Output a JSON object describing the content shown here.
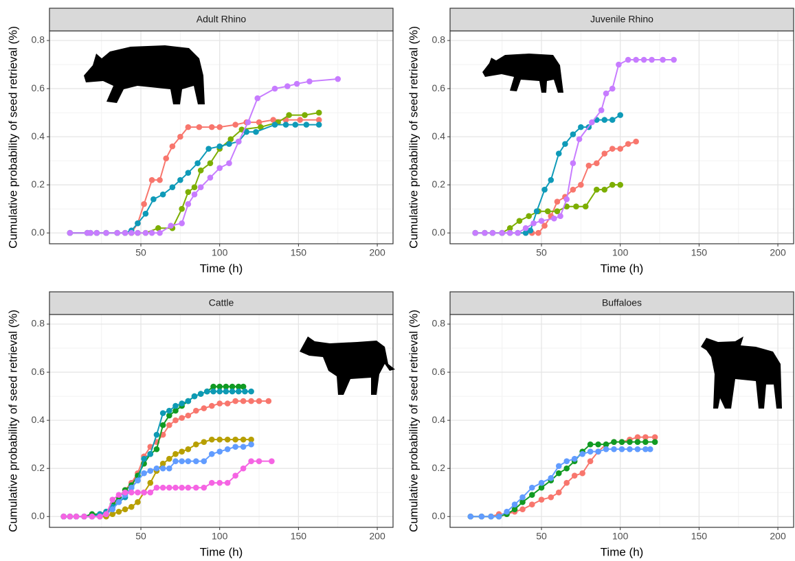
{
  "chart_data": [
    {
      "type": "line",
      "title": "Adult Rhino",
      "xlabel": "Time (h)",
      "ylabel": "Cumulative probability of seed retrieval (%)",
      "xlim": [
        -8,
        210
      ],
      "ylim": [
        -0.045,
        0.84
      ],
      "xticks": [
        50,
        100,
        150,
        200
      ],
      "yticks": [
        {
          "value": 0,
          "label": "0.0"
        },
        0.2,
        0.4,
        0.6,
        0.8
      ],
      "grid": true,
      "series": [
        {
          "color": "#F8766D",
          "x": [
            5,
            16,
            18,
            22,
            28,
            35,
            40,
            44,
            48,
            52,
            57,
            62,
            66,
            70,
            75,
            80,
            87,
            95,
            100,
            110,
            117,
            125,
            134,
            142,
            151,
            163
          ],
          "values": [
            0,
            0,
            0,
            0,
            0,
            0,
            0,
            0,
            0.04,
            0.12,
            0.22,
            0.22,
            0.31,
            0.36,
            0.4,
            0.44,
            0.44,
            0.44,
            0.44,
            0.45,
            0.46,
            0.46,
            0.47,
            0.47,
            0.47,
            0.47
          ]
        },
        {
          "color": "#7CAE00",
          "x": [
            5,
            16,
            18,
            22,
            28,
            35,
            40,
            44,
            48,
            53,
            61,
            70,
            76,
            80,
            84,
            88,
            94,
            100,
            107,
            114,
            126,
            137,
            144,
            154,
            163
          ],
          "values": [
            0,
            0,
            0,
            0,
            0,
            0,
            0,
            0,
            0,
            0,
            0.02,
            0.02,
            0.1,
            0.17,
            0.19,
            0.26,
            0.29,
            0.35,
            0.39,
            0.43,
            0.44,
            0.46,
            0.49,
            0.49,
            0.5
          ]
        },
        {
          "color": "#0E9AB8",
          "x": [
            5,
            16,
            18,
            22,
            28,
            35,
            40,
            44,
            48,
            53,
            58,
            64,
            70,
            75,
            80,
            86,
            93,
            100,
            106,
            112,
            117,
            123,
            135,
            142,
            148,
            155,
            163
          ],
          "values": [
            0,
            0,
            0,
            0,
            0,
            0,
            0,
            0.01,
            0.04,
            0.08,
            0.14,
            0.16,
            0.19,
            0.22,
            0.25,
            0.29,
            0.35,
            0.36,
            0.37,
            0.38,
            0.42,
            0.42,
            0.45,
            0.45,
            0.45,
            0.45,
            0.45
          ]
        },
        {
          "color": "#C77CFF",
          "x": [
            5,
            16,
            18,
            22,
            28,
            35,
            40,
            44,
            48,
            53,
            57,
            62,
            69,
            76,
            80,
            84,
            88,
            94,
            100,
            106,
            112,
            118,
            124,
            135,
            143,
            149,
            157,
            175
          ],
          "values": [
            0,
            0,
            0,
            0,
            0,
            0,
            0,
            0,
            0,
            0,
            0,
            0,
            0.03,
            0.04,
            0.12,
            0.16,
            0.19,
            0.23,
            0.27,
            0.29,
            0.38,
            0.46,
            0.56,
            0.6,
            0.61,
            0.62,
            0.63,
            0.64
          ]
        }
      ]
    },
    {
      "type": "line",
      "title": "Juvenile Rhino",
      "xlabel": "Time (h)",
      "ylabel": "Cumulative probability of seed retrieval (%)",
      "xlim": [
        -8,
        210
      ],
      "ylim": [
        -0.045,
        0.84
      ],
      "xticks": [
        50,
        100,
        150,
        200
      ],
      "yticks": [
        {
          "value": 0,
          "label": "0.0"
        },
        0.2,
        0.4,
        0.6,
        0.8
      ],
      "grid": true,
      "series": [
        {
          "color": "#F8766D",
          "x": [
            8,
            14,
            19,
            25,
            30,
            35,
            40,
            44,
            48,
            52,
            56,
            60,
            65,
            70,
            75,
            80,
            85,
            90,
            95,
            100,
            105,
            110
          ],
          "values": [
            0,
            0,
            0,
            0,
            0,
            0,
            0,
            0,
            0,
            0.03,
            0.07,
            0.13,
            0.15,
            0.18,
            0.2,
            0.28,
            0.29,
            0.33,
            0.35,
            0.35,
            0.37,
            0.38
          ]
        },
        {
          "color": "#7CAE00",
          "x": [
            8,
            14,
            19,
            25,
            30,
            36,
            42,
            48,
            54,
            60,
            66,
            72,
            78,
            85,
            90,
            95,
            100
          ],
          "values": [
            0,
            0,
            0,
            0,
            0.02,
            0.05,
            0.07,
            0.09,
            0.09,
            0.09,
            0.11,
            0.11,
            0.11,
            0.18,
            0.18,
            0.2,
            0.2
          ]
        },
        {
          "color": "#0E9AB8",
          "x": [
            8,
            14,
            19,
            25,
            30,
            35,
            40,
            43,
            47,
            52,
            56,
            61,
            65,
            70,
            75,
            80,
            85,
            90,
            95,
            100
          ],
          "values": [
            0,
            0,
            0,
            0,
            0,
            0,
            0,
            0.01,
            0.09,
            0.18,
            0.22,
            0.33,
            0.37,
            0.41,
            0.44,
            0.44,
            0.47,
            0.47,
            0.47,
            0.49
          ]
        },
        {
          "color": "#C77CFF",
          "x": [
            8,
            14,
            19,
            25,
            30,
            35,
            40,
            45,
            50,
            58,
            62,
            66,
            70,
            74,
            82,
            88,
            91,
            95,
            99,
            105,
            110,
            115,
            120,
            127,
            134
          ],
          "values": [
            0,
            0,
            0,
            0,
            0,
            0,
            0.02,
            0.04,
            0.05,
            0.06,
            0.07,
            0.14,
            0.29,
            0.39,
            0.46,
            0.51,
            0.58,
            0.6,
            0.7,
            0.72,
            0.72,
            0.72,
            0.72,
            0.72,
            0.72
          ]
        }
      ]
    },
    {
      "type": "line",
      "title": "Cattle",
      "xlabel": "Time (h)",
      "ylabel": "Cumulative probability of seed retrieval (%)",
      "xlim": [
        -8,
        210
      ],
      "ylim": [
        -0.045,
        0.84
      ],
      "xticks": [
        50,
        100,
        150,
        200
      ],
      "yticks": [
        {
          "value": 0,
          "label": "0.0"
        },
        0.2,
        0.4,
        0.6,
        0.8
      ],
      "grid": true,
      "series": [
        {
          "color": "#F8766D",
          "x": [
            1,
            5,
            9,
            14,
            19,
            24,
            28,
            32,
            36,
            40,
            44,
            48,
            52,
            56,
            60,
            64,
            68,
            72,
            76,
            80,
            85,
            90,
            95,
            100,
            105,
            110,
            115,
            120,
            125,
            131
          ],
          "values": [
            0,
            0,
            0,
            0,
            0,
            0,
            0.01,
            0.04,
            0.08,
            0.11,
            0.14,
            0.18,
            0.25,
            0.29,
            0.31,
            0.34,
            0.38,
            0.4,
            0.41,
            0.42,
            0.44,
            0.45,
            0.46,
            0.47,
            0.47,
            0.48,
            0.48,
            0.48,
            0.48,
            0.48
          ]
        },
        {
          "color": "#B79F00",
          "x": [
            1,
            5,
            9,
            14,
            19,
            24,
            28,
            32,
            36,
            40,
            44,
            48,
            52,
            56,
            60,
            64,
            68,
            72,
            76,
            80,
            85,
            90,
            95,
            100,
            105,
            110,
            115,
            120
          ],
          "values": [
            0,
            0,
            0,
            0,
            0,
            0,
            0,
            0.01,
            0.02,
            0.03,
            0.04,
            0.06,
            0.1,
            0.14,
            0.19,
            0.22,
            0.24,
            0.26,
            0.27,
            0.28,
            0.3,
            0.31,
            0.32,
            0.32,
            0.32,
            0.32,
            0.32,
            0.32
          ]
        },
        {
          "color": "#119A22",
          "x": [
            1,
            5,
            9,
            14,
            19,
            24,
            28,
            32,
            36,
            40,
            44,
            48,
            52,
            56,
            60,
            64,
            68,
            72,
            76,
            80,
            84,
            88,
            92,
            96,
            100,
            104,
            108,
            112,
            115
          ],
          "values": [
            0,
            0,
            0,
            0,
            0.01,
            0.01,
            0.02,
            0.05,
            0.08,
            0.11,
            0.13,
            0.17,
            0.22,
            0.26,
            0.28,
            0.38,
            0.42,
            0.44,
            0.46,
            0.48,
            0.5,
            0.51,
            0.52,
            0.54,
            0.54,
            0.54,
            0.54,
            0.54,
            0.54
          ]
        },
        {
          "color": "#0E9AB4",
          "x": [
            1,
            5,
            9,
            14,
            19,
            24,
            28,
            32,
            36,
            40,
            44,
            48,
            52,
            56,
            60,
            64,
            68,
            72,
            76,
            80,
            84,
            88,
            92,
            96,
            100,
            104,
            108,
            112,
            116,
            120
          ],
          "values": [
            0,
            0,
            0,
            0,
            0,
            0.01,
            0.02,
            0.04,
            0.06,
            0.08,
            0.12,
            0.15,
            0.24,
            0.26,
            0.34,
            0.43,
            0.44,
            0.46,
            0.47,
            0.48,
            0.5,
            0.51,
            0.52,
            0.52,
            0.52,
            0.52,
            0.52,
            0.52,
            0.52,
            0.52
          ]
        },
        {
          "color": "#619CFF",
          "x": [
            1,
            5,
            9,
            14,
            19,
            24,
            28,
            32,
            36,
            40,
            44,
            48,
            52,
            56,
            60,
            64,
            68,
            72,
            76,
            80,
            85,
            90,
            95,
            100,
            105,
            110,
            115,
            120
          ],
          "values": [
            0,
            0,
            0,
            0,
            0,
            0,
            0.01,
            0.03,
            0.06,
            0.09,
            0.12,
            0.15,
            0.18,
            0.19,
            0.2,
            0.2,
            0.2,
            0.23,
            0.23,
            0.23,
            0.23,
            0.23,
            0.26,
            0.27,
            0.28,
            0.29,
            0.29,
            0.3
          ]
        },
        {
          "color": "#F564E3",
          "x": [
            1,
            5,
            9,
            14,
            19,
            24,
            28,
            32,
            36,
            40,
            44,
            48,
            52,
            56,
            60,
            64,
            68,
            72,
            76,
            80,
            85,
            90,
            95,
            100,
            105,
            110,
            115,
            120,
            125,
            133
          ],
          "values": [
            0,
            0,
            0,
            0,
            0,
            0,
            0.01,
            0.07,
            0.09,
            0.1,
            0.1,
            0.1,
            0.1,
            0.1,
            0.12,
            0.12,
            0.12,
            0.12,
            0.12,
            0.12,
            0.12,
            0.12,
            0.14,
            0.14,
            0.14,
            0.17,
            0.2,
            0.23,
            0.23,
            0.23
          ]
        }
      ]
    },
    {
      "type": "line",
      "title": "Buffaloes",
      "xlabel": "Time (h)",
      "ylabel": "Cumulative probability of seed retrieval (%)",
      "xlim": [
        -8,
        210
      ],
      "ylim": [
        -0.045,
        0.84
      ],
      "xticks": [
        50,
        100,
        150,
        200
      ],
      "yticks": [
        {
          "value": 0,
          "label": "0.0"
        },
        0.2,
        0.4,
        0.6,
        0.8
      ],
      "grid": true,
      "series": [
        {
          "color": "#F8766D",
          "x": [
            5,
            12,
            18,
            23,
            28,
            33,
            38,
            44,
            50,
            56,
            61,
            66,
            71,
            76,
            81,
            86,
            91,
            96,
            101,
            106,
            111,
            116,
            122
          ],
          "values": [
            0,
            0,
            0,
            0.01,
            0.01,
            0.02,
            0.03,
            0.05,
            0.07,
            0.08,
            0.1,
            0.14,
            0.17,
            0.18,
            0.23,
            0.27,
            0.3,
            0.31,
            0.31,
            0.32,
            0.33,
            0.33,
            0.33
          ]
        },
        {
          "color": "#119A22",
          "x": [
            5,
            12,
            18,
            23,
            28,
            33,
            38,
            44,
            50,
            56,
            61,
            66,
            71,
            76,
            81,
            86,
            91,
            96,
            101,
            106,
            111,
            116,
            122
          ],
          "values": [
            0,
            0,
            0,
            0,
            0.01,
            0.03,
            0.06,
            0.09,
            0.12,
            0.15,
            0.18,
            0.2,
            0.23,
            0.27,
            0.3,
            0.3,
            0.3,
            0.31,
            0.31,
            0.31,
            0.31,
            0.31,
            0.31
          ]
        },
        {
          "color": "#619CFF",
          "x": [
            5,
            12,
            18,
            23,
            28,
            33,
            38,
            44,
            50,
            56,
            61,
            66,
            71,
            76,
            81,
            86,
            91,
            96,
            101,
            106,
            111,
            116,
            119
          ],
          "values": [
            0,
            0,
            0,
            0,
            0.02,
            0.05,
            0.08,
            0.12,
            0.14,
            0.16,
            0.21,
            0.23,
            0.24,
            0.26,
            0.27,
            0.27,
            0.28,
            0.28,
            0.28,
            0.28,
            0.28,
            0.28,
            0.28
          ]
        }
      ]
    }
  ]
}
